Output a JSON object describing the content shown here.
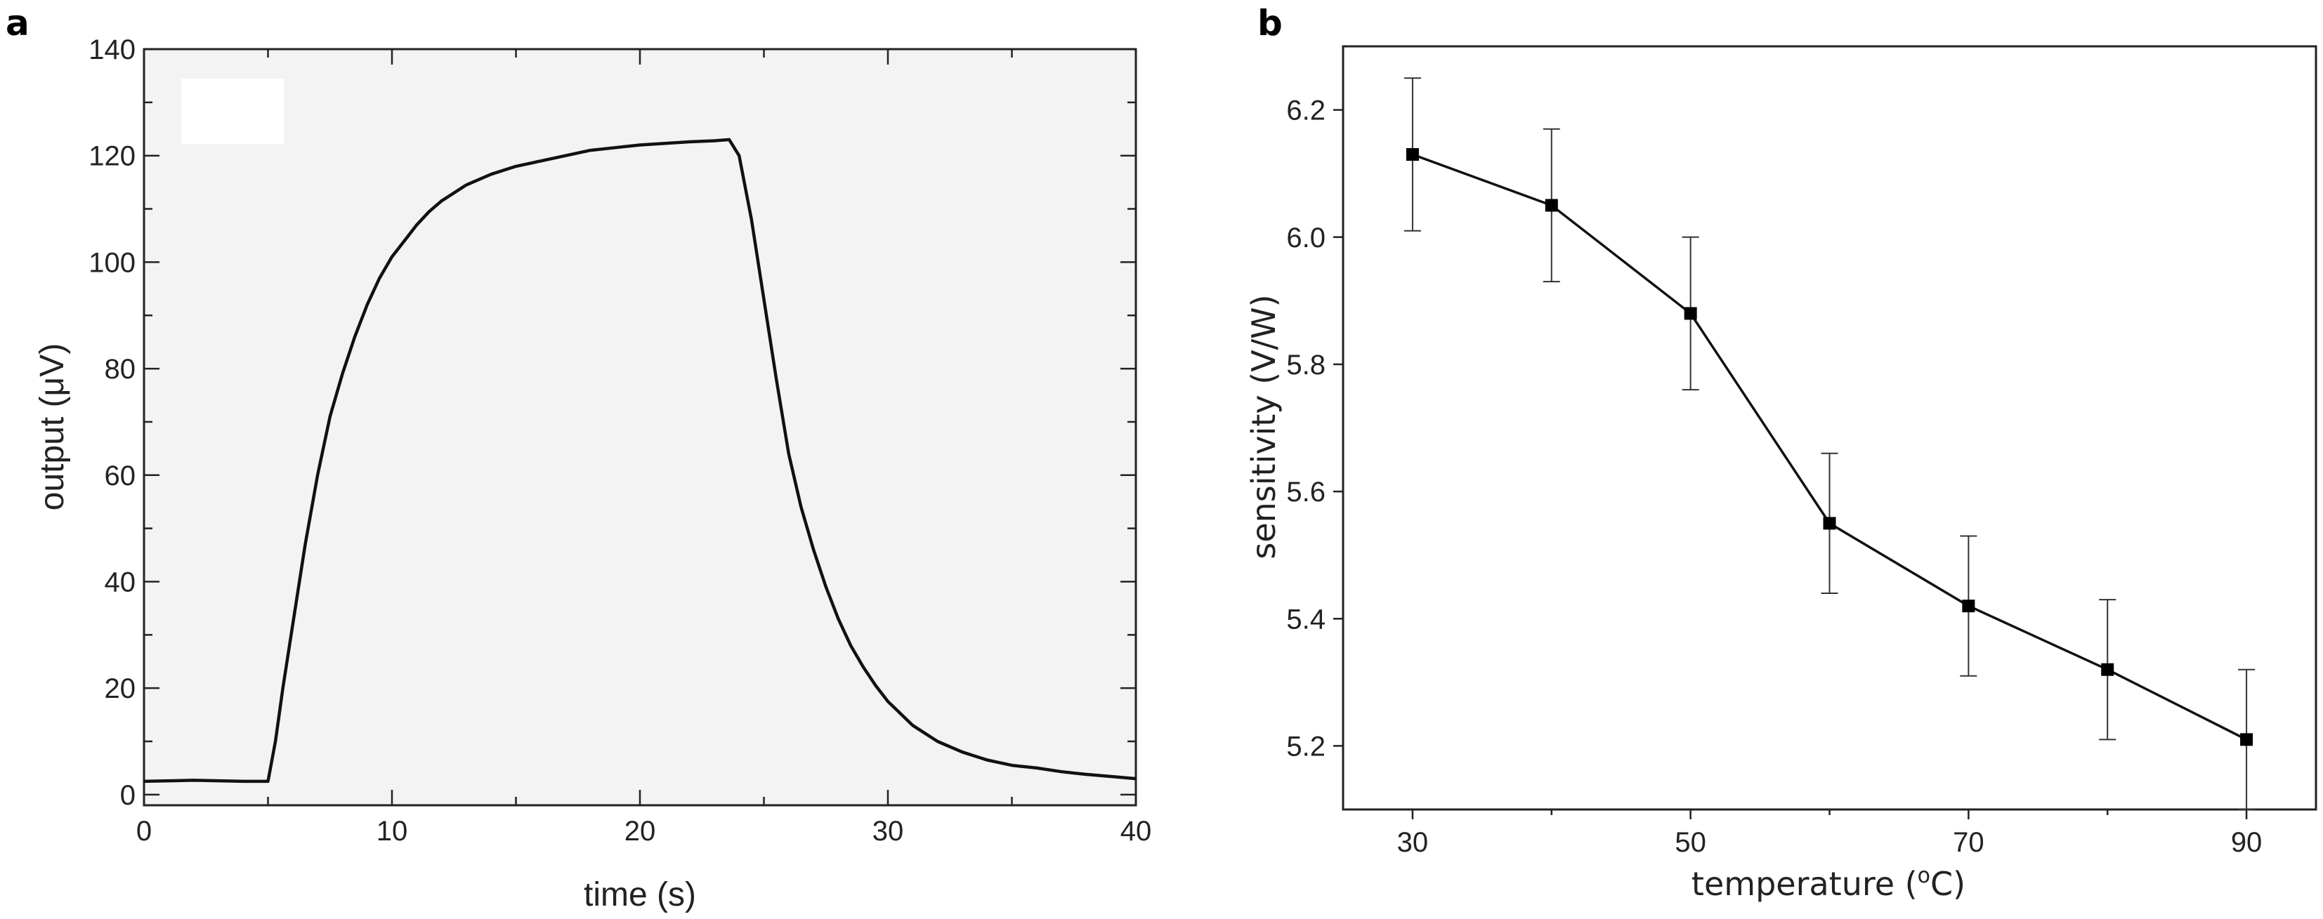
{
  "chart_data": [
    {
      "panel_label": "a",
      "type": "line",
      "title": "",
      "xlabel": "time (s)",
      "ylabel": "output (μV)",
      "xlim": [
        0,
        40
      ],
      "ylim": [
        -2,
        140
      ],
      "xticks": [
        0,
        10,
        20,
        30,
        40
      ],
      "yticks": [
        0,
        20,
        40,
        60,
        80,
        100,
        120,
        140
      ],
      "grid": false,
      "series": [
        {
          "name": "output",
          "x": [
            0,
            2,
            4,
            5.0,
            5.3,
            5.6,
            6,
            6.5,
            7,
            7.5,
            8,
            8.5,
            9,
            9.5,
            10,
            10.5,
            11,
            11.5,
            12,
            13,
            14,
            15,
            16,
            17,
            18,
            19,
            20,
            21,
            22,
            23,
            23.6,
            24,
            24.5,
            25,
            25.5,
            26,
            26.5,
            27,
            27.5,
            28,
            28.5,
            29,
            29.5,
            30,
            31,
            32,
            33,
            34,
            35,
            36,
            37,
            38,
            39,
            40
          ],
          "y": [
            2.5,
            2.7,
            2.5,
            2.5,
            10,
            20,
            32,
            47,
            60,
            71,
            79,
            86,
            92,
            97,
            101,
            104,
            107,
            109.5,
            111.5,
            114.5,
            116.5,
            118,
            119,
            120,
            121,
            121.5,
            122,
            122.3,
            122.6,
            122.8,
            123,
            120,
            108,
            93,
            78,
            64,
            54,
            46,
            39,
            33,
            28,
            24,
            20.5,
            17.5,
            13,
            10,
            8,
            6.5,
            5.5,
            5,
            4.3,
            3.8,
            3.4,
            3
          ]
        }
      ]
    },
    {
      "panel_label": "b",
      "type": "line",
      "title": "",
      "xlabel": "temperature (",
      "xlabel_sup": "o",
      "xlabel_suffix": "C)",
      "ylabel": "sensitivity (V/W)",
      "xlim": [
        25,
        95
      ],
      "ylim": [
        5.1,
        6.3
      ],
      "xticks": [
        30,
        50,
        70,
        90
      ],
      "yticks": [
        5.2,
        5.4,
        5.6,
        5.8,
        6.0,
        6.2
      ],
      "ytick_labels": [
        "5.2",
        "5.4",
        "5.6",
        "5.8",
        "6.0",
        "6.2"
      ],
      "grid": false,
      "series": [
        {
          "name": "sensitivity",
          "x": [
            30,
            40,
            50,
            60,
            70,
            80,
            90
          ],
          "y": [
            6.13,
            6.05,
            5.88,
            5.55,
            5.42,
            5.32,
            5.21
          ],
          "yerr": [
            0.12,
            0.12,
            0.12,
            0.11,
            0.11,
            0.11,
            0.11
          ]
        }
      ]
    }
  ]
}
